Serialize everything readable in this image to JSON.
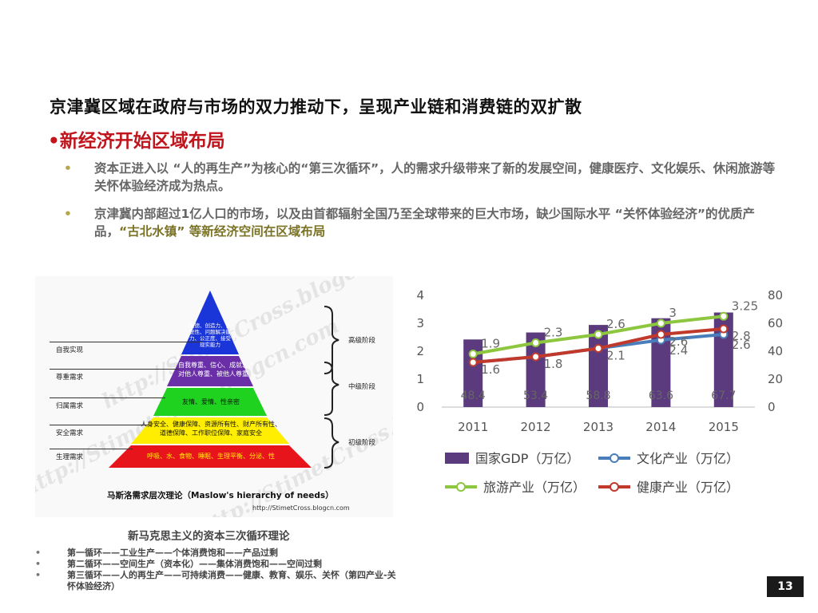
{
  "slide": {
    "title": "京津冀区域在政府与市场的双力推动下，呈现产业链和消费链的双扩散",
    "subtitle": "•新经济开始区域布局",
    "bullets": [
      {
        "marker": "•",
        "text_a": "资本正进入以 “人的再生产”为核心的“第三次循环”，人的需求升级带来了新的发展空间，健康医疗、文化娱乐、休闲旅游等关怀体验经济成为热点。"
      },
      {
        "marker": "•",
        "text_a": "京津冀内部超过1亿人口的市场，以及由首都辐射全国乃至全球带来的巨大市场，缺少国际水平 “关怀体验经济”的优质产品，",
        "highlight": "“古北水镇” 等新经济空间在区域布局"
      }
    ],
    "page_number": "13"
  },
  "pyramid": {
    "watermark_text": "http://StimetCross.blogcn.com",
    "levels": [
      {
        "name": "自我实现",
        "content": "道德、创造力、自觉性、问题解决能力、公正度、接受现实能力",
        "color": "#1a35d8"
      },
      {
        "name": "尊重需求",
        "content": "自我尊重、信心、成就、对他人尊重、被他人尊重",
        "color": "#6a2fa8"
      },
      {
        "name": "归属需求",
        "content": "友情、爱情、性亲密",
        "color": "#1fd21f"
      },
      {
        "name": "安全需求",
        "content": "人身安全、健康保障、资源所有性、财产所有性、道德保障、工作职位保障、家庭安全",
        "color": "#ffee00"
      },
      {
        "name": "生理需求",
        "content": "呼吸、水、食物、睡眠、生理平衡、分泌、性",
        "color": "#e8141b"
      }
    ],
    "stages": [
      "高级阶段",
      "中级阶段",
      "初级阶段"
    ],
    "caption": "马斯洛需求层次理论（Maslow's hierarchy of needs）",
    "credit": "http://StimetCross.blogcn.com"
  },
  "theory": {
    "title": "新马克思主义的资本三次循环理论",
    "items": [
      "第一循环——工业生产——个体消费饱和——产品过剩",
      "第二循环——空间生产（资本化）——集体消费饱和——空间过剩",
      "第三循环——人的再生产——可持续消费——健康、教育、娱乐、关怀（第四产业-关怀体验经济）"
    ]
  },
  "chart_data": {
    "type": "bar",
    "categories": [
      "2011",
      "2012",
      "2013",
      "2014",
      "2015"
    ],
    "bar_series": {
      "name": "国家GDP（万亿）",
      "values": [
        48.4,
        53.4,
        58.8,
        63.6,
        67.7
      ],
      "axis": "right",
      "color": "#5b3a7e"
    },
    "line_series": [
      {
        "name": "文化产业（万亿）",
        "values": [
          1.6,
          1.8,
          2.1,
          2.4,
          2.6
        ],
        "axis": "left",
        "color": "#4a7ebb"
      },
      {
        "name": "旅游产业（万亿）",
        "values": [
          1.9,
          2.3,
          2.6,
          3.0,
          3.25
        ],
        "axis": "left",
        "color": "#8dc63f"
      },
      {
        "name": "健康产业（万亿）",
        "values": [
          1.6,
          1.8,
          2.1,
          2.6,
          2.8
        ],
        "axis": "left",
        "color": "#c0392b"
      }
    ],
    "left_axis": {
      "ylim": [
        0,
        4
      ],
      "ticks": [
        "0",
        "1",
        "2",
        "3",
        "4"
      ]
    },
    "right_axis": {
      "ylim": [
        0,
        80
      ],
      "ticks": [
        "0",
        "20",
        "40",
        "60",
        "80"
      ]
    },
    "bar_labels": [
      "48.4",
      "53.4",
      "58.8",
      "63.6",
      "67.7"
    ],
    "line_labels": {
      "文化产业（万亿）": [
        "",
        "",
        "",
        "2.4",
        "2.6"
      ],
      "旅游产业（万亿）": [
        "1.9",
        "2.3",
        "2.6",
        "3",
        "3.25"
      ],
      "健康产业（万亿）": [
        "1.6",
        "1.8",
        "2.1",
        "2.6",
        "2.8"
      ]
    },
    "legend_position": "bottom",
    "grid": false
  }
}
